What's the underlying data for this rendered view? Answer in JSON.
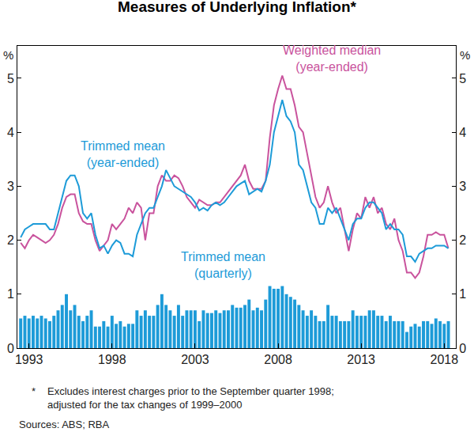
{
  "chart_data": {
    "type": "line",
    "title": "Measures of Underlying Inflation*",
    "ylabel": "%",
    "y2label": "%",
    "x": [
      1992.5,
      1992.75,
      1993,
      1993.25,
      1993.5,
      1993.75,
      1994,
      1994.25,
      1994.5,
      1994.75,
      1995,
      1995.25,
      1995.5,
      1995.75,
      1996,
      1996.25,
      1996.5,
      1996.75,
      1997,
      1997.25,
      1997.5,
      1997.75,
      1998,
      1998.25,
      1998.5,
      1998.75,
      1999,
      1999.25,
      1999.5,
      1999.75,
      2000,
      2000.25,
      2000.5,
      2000.75,
      2001,
      2001.25,
      2001.5,
      2001.75,
      2002,
      2002.25,
      2002.5,
      2002.75,
      2003,
      2003.25,
      2003.5,
      2003.75,
      2004,
      2004.25,
      2004.5,
      2004.75,
      2005,
      2005.25,
      2005.5,
      2005.75,
      2006,
      2006.25,
      2006.5,
      2006.75,
      2007,
      2007.25,
      2007.5,
      2007.75,
      2008,
      2008.25,
      2008.5,
      2008.75,
      2009,
      2009.25,
      2009.5,
      2009.75,
      2010,
      2010.25,
      2010.5,
      2010.75,
      2011,
      2011.25,
      2011.5,
      2011.75,
      2012,
      2012.25,
      2012.5,
      2012.75,
      2013,
      2013.25,
      2013.5,
      2013.75,
      2014,
      2014.25,
      2014.5,
      2014.75,
      2015,
      2015.25,
      2015.5,
      2015.75,
      2016,
      2016.25,
      2016.5,
      2016.75,
      2017,
      2017.25,
      2017.5,
      2017.75,
      2018,
      2018.25
    ],
    "series": [
      {
        "name": "Trimmed mean (quarterly)",
        "type": "bar",
        "color": "#1d9bd8",
        "values": [
          0.55,
          0.6,
          0.55,
          0.6,
          0.55,
          0.6,
          0.55,
          0.5,
          0.6,
          0.7,
          0.8,
          1.0,
          0.7,
          0.8,
          0.6,
          0.5,
          0.6,
          0.7,
          0.4,
          0.4,
          0.5,
          0.4,
          0.6,
          0.45,
          0.5,
          0.4,
          0.45,
          0.45,
          0.7,
          0.6,
          0.7,
          0.6,
          0.6,
          0.8,
          1.0,
          0.8,
          0.7,
          0.6,
          0.8,
          0.6,
          0.7,
          0.7,
          0.7,
          0.5,
          0.7,
          0.65,
          0.65,
          0.7,
          0.65,
          0.7,
          0.7,
          0.8,
          0.75,
          0.75,
          0.8,
          0.9,
          0.7,
          0.75,
          0.7,
          0.9,
          1.15,
          1.1,
          1.1,
          1.15,
          1.0,
          0.95,
          0.9,
          0.8,
          0.7,
          0.6,
          0.7,
          0.6,
          0.5,
          0.5,
          0.8,
          0.6,
          0.6,
          0.5,
          0.5,
          0.5,
          0.7,
          0.6,
          0.6,
          0.6,
          0.7,
          0.7,
          0.6,
          0.6,
          0.5,
          0.6,
          0.5,
          0.5,
          0.5,
          0.3,
          0.4,
          0.45,
          0.4,
          0.5,
          0.5,
          0.45,
          0.55,
          0.5,
          0.45,
          0.5
        ]
      },
      {
        "name": "Weighted median (year-ended)",
        "color": "#c9539d",
        "values": [
          1.95,
          1.85,
          2.0,
          2.1,
          2.05,
          2.0,
          1.95,
          2.0,
          2.1,
          2.3,
          2.6,
          2.8,
          2.85,
          2.85,
          2.5,
          2.35,
          2.3,
          2.3,
          2.0,
          1.8,
          1.9,
          2.0,
          2.3,
          2.2,
          2.3,
          2.4,
          2.6,
          2.5,
          2.7,
          2.6,
          2.0,
          2.5,
          2.5,
          3.0,
          3.2,
          3.1,
          3.1,
          3.2,
          3.15,
          3.0,
          2.8,
          2.7,
          2.6,
          2.75,
          2.7,
          2.65,
          2.65,
          2.7,
          2.7,
          2.8,
          2.9,
          3.0,
          3.1,
          3.2,
          3.4,
          3.1,
          2.95,
          2.95,
          2.95,
          3.1,
          3.9,
          4.5,
          4.8,
          5.05,
          4.8,
          4.8,
          4.5,
          4.1,
          4.0,
          3.6,
          3.2,
          2.8,
          2.6,
          2.7,
          3.0,
          2.7,
          2.5,
          2.6,
          2.2,
          1.8,
          2.2,
          2.5,
          2.4,
          2.8,
          2.6,
          2.8,
          2.5,
          2.6,
          2.3,
          2.2,
          2.4,
          2.0,
          1.8,
          1.4,
          1.4,
          1.3,
          1.4,
          1.7,
          2.1,
          2.1,
          2.15,
          2.1,
          2.1,
          1.85
        ]
      },
      {
        "name": "Trimmed mean (year-ended)",
        "color": "#1d9bd8",
        "values": [
          2.05,
          2.2,
          2.25,
          2.3,
          2.3,
          2.3,
          2.3,
          2.2,
          2.2,
          2.5,
          2.8,
          3.1,
          3.2,
          3.2,
          3.0,
          2.5,
          2.4,
          2.5,
          2.1,
          1.85,
          1.9,
          1.75,
          1.9,
          2.0,
          1.95,
          1.75,
          1.75,
          1.7,
          2.1,
          2.3,
          2.5,
          2.6,
          2.6,
          2.8,
          3.0,
          3.3,
          3.15,
          3.0,
          2.95,
          2.9,
          2.85,
          2.8,
          2.7,
          2.55,
          2.6,
          2.55,
          2.65,
          2.7,
          2.65,
          2.7,
          2.8,
          2.9,
          3.0,
          3.05,
          3.1,
          2.85,
          2.9,
          2.95,
          2.9,
          3.1,
          3.4,
          4.0,
          4.3,
          4.6,
          4.3,
          4.2,
          4.0,
          3.4,
          3.3,
          3.0,
          2.7,
          2.6,
          2.3,
          2.3,
          2.6,
          2.5,
          2.6,
          2.4,
          2.2,
          2.0,
          2.3,
          2.4,
          2.4,
          2.6,
          2.7,
          2.7,
          2.6,
          2.5,
          2.2,
          2.3,
          2.2,
          2.2,
          2.1,
          1.7,
          1.7,
          1.6,
          1.75,
          1.8,
          1.85,
          1.85,
          1.9,
          1.9,
          1.9,
          1.85
        ]
      }
    ],
    "xlim": [
      1992.3,
      2018.7
    ],
    "xticks": [
      1993,
      1998,
      2003,
      2008,
      2013,
      2018
    ],
    "ylim": [
      0,
      5.6
    ],
    "yticks": [
      0,
      1,
      2,
      3,
      4,
      5
    ],
    "y2lim": [
      0,
      5.6
    ],
    "y2ticks": [
      0,
      1,
      2,
      3,
      4,
      5
    ],
    "grid": false,
    "footnote_marker": "*",
    "footnote": [
      "Excludes interest charges prior to the September quarter 1998;",
      "adjusted for the tax changes of 1999–2000"
    ],
    "source": "Sources: ABS; RBA"
  }
}
